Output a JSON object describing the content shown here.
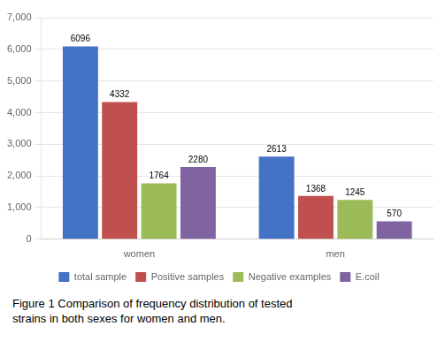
{
  "chart_data": {
    "type": "bar",
    "categories": [
      "women",
      "men"
    ],
    "series": [
      {
        "name": "total sample",
        "color": "#4472C4",
        "values": [
          6096,
          2613
        ]
      },
      {
        "name": "Positive samples",
        "color": "#C0504D",
        "values": [
          4332,
          1368
        ]
      },
      {
        "name": "Negative examples",
        "color": "#9BBB59",
        "values": [
          1764,
          1245
        ]
      },
      {
        "name": "E.coil",
        "color": "#8064A2",
        "values": [
          2280,
          570
        ]
      }
    ],
    "ylim": [
      0,
      7000
    ],
    "yticks": [
      0,
      1000,
      2000,
      3000,
      4000,
      5000,
      6000,
      7000
    ],
    "grid": true,
    "legend": "bottom",
    "data_labels": true,
    "annotations": [
      "Figure 1 Comparison of frequency distribution of tested\nstrains in both sexes for women and men."
    ]
  }
}
